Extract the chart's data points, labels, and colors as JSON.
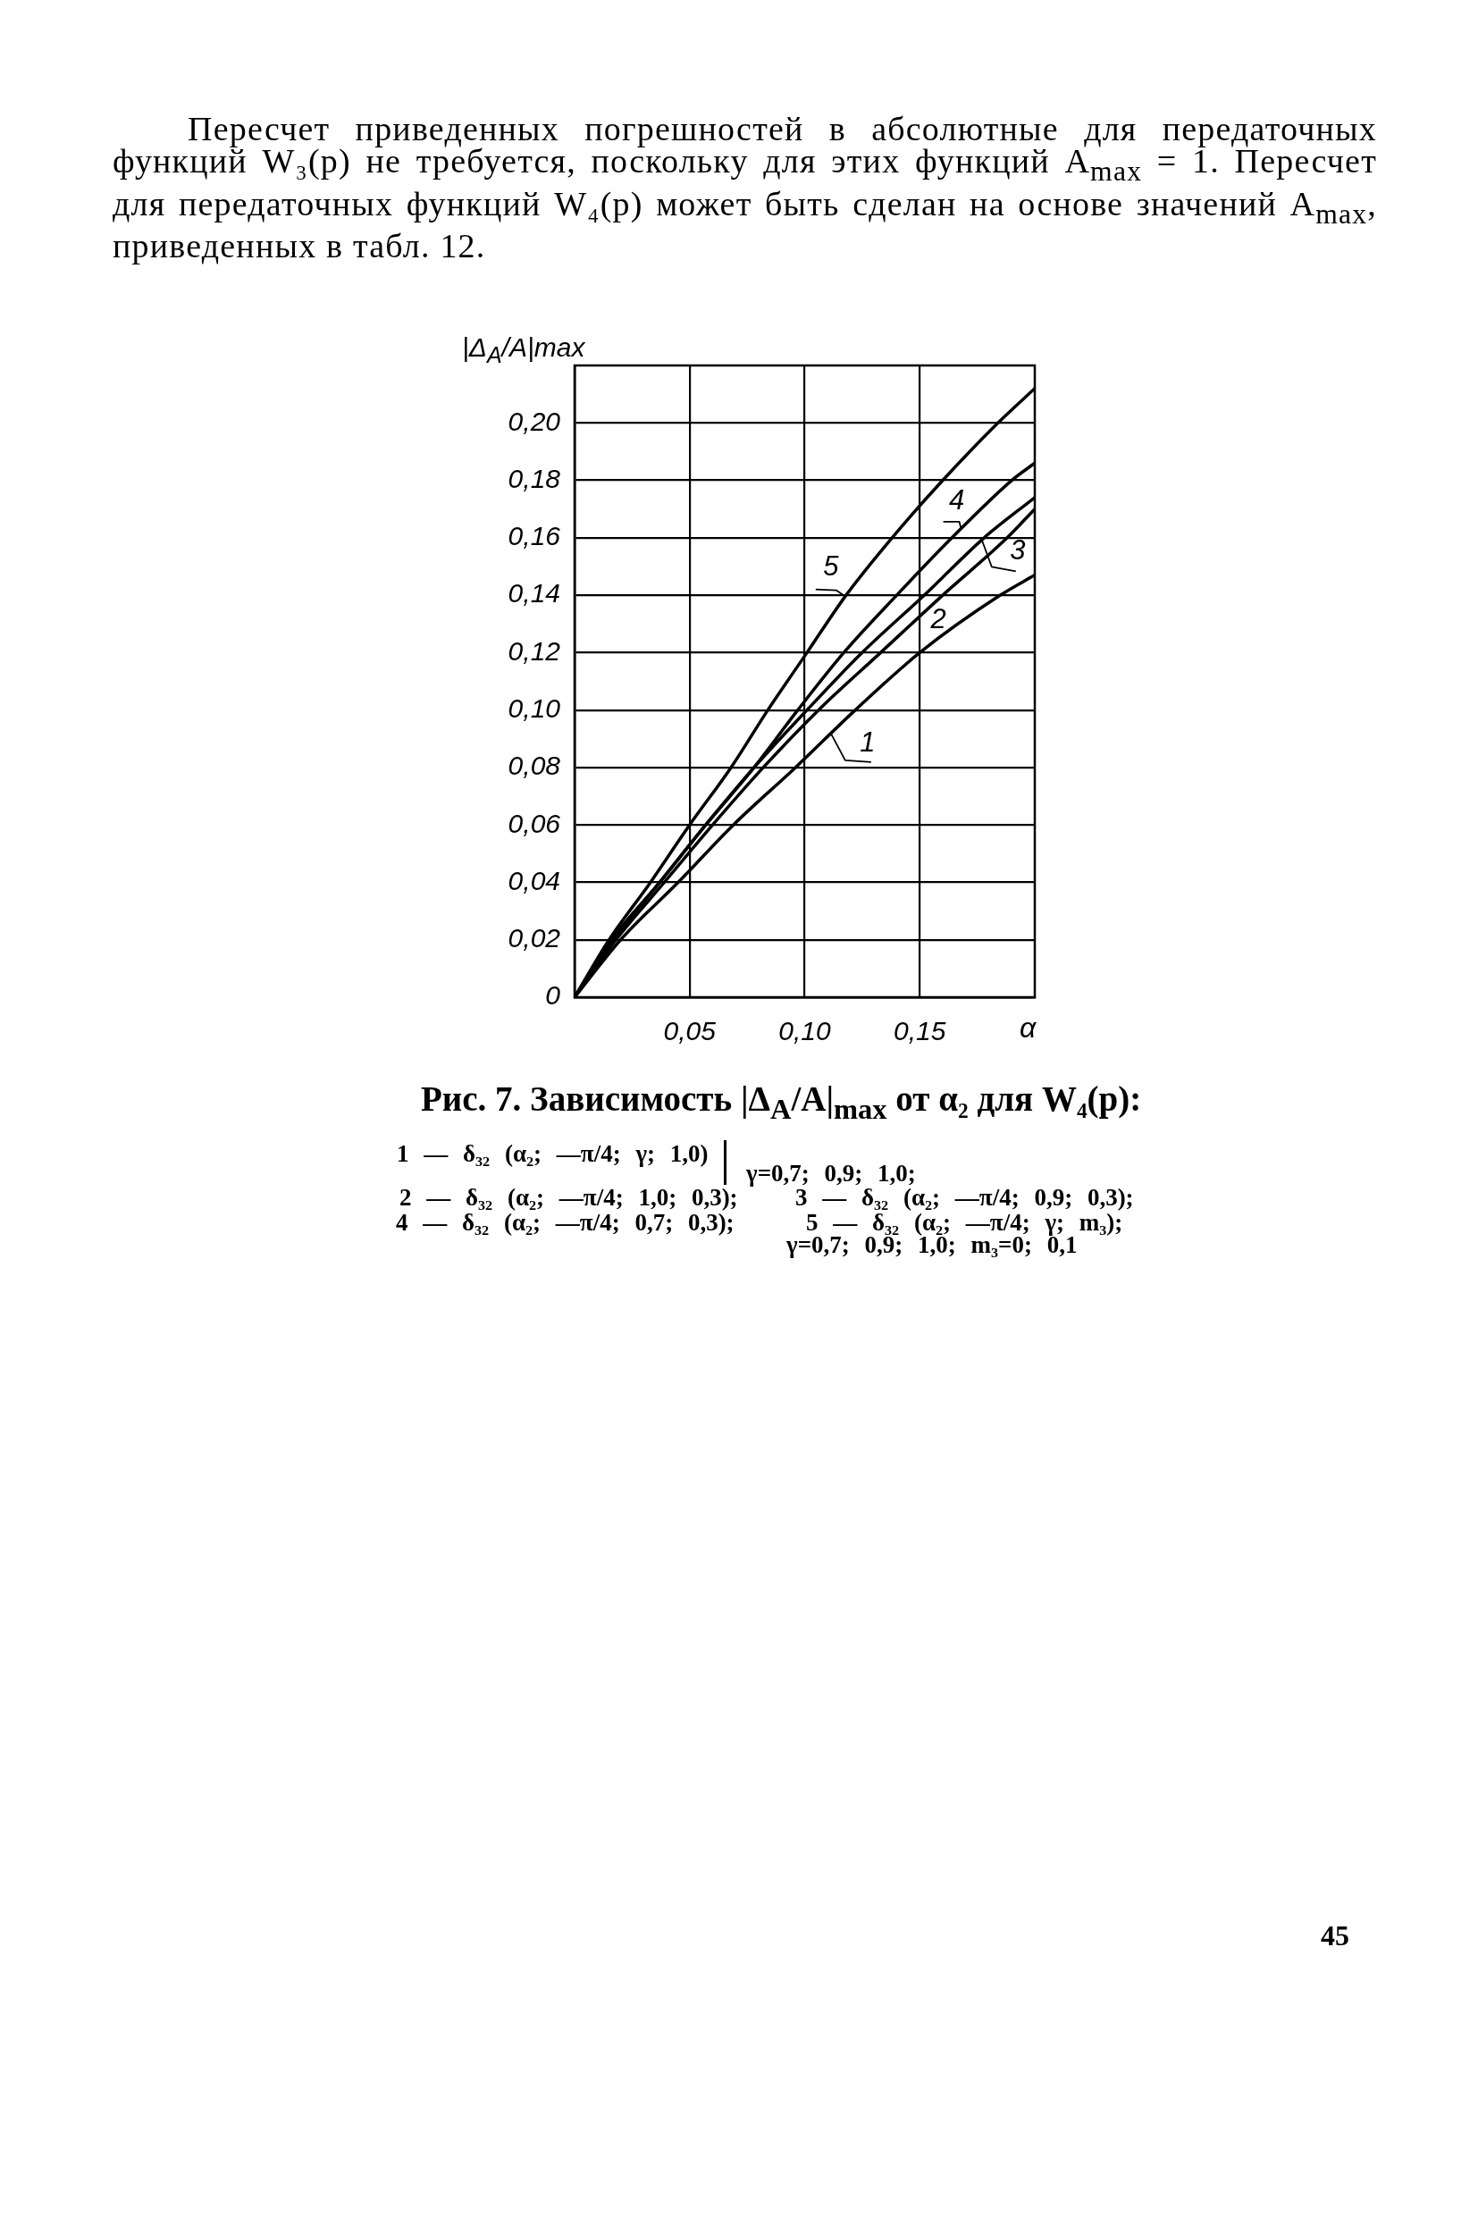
{
  "chart_data": {
    "type": "line",
    "title": "Рис. 7. Зависимость |Δ$_{A}$/A|$_{max}$ от α₂ для W₄(p):",
    "xlabel": "α",
    "ylabel": "|Δ$_{A}$/A|max",
    "xlim": [
      0,
      0.2
    ],
    "ylim": [
      0,
      0.22
    ],
    "xticks": [
      {
        "value": 0.05,
        "label": "0,05"
      },
      {
        "value": 0.1,
        "label": "0,10"
      },
      {
        "value": 0.15,
        "label": "0,15"
      }
    ],
    "yticks": [
      0,
      {
        "value": 0.02,
        "label": "0,02"
      },
      {
        "value": 0.04,
        "label": "0,04"
      },
      {
        "value": 0.06,
        "label": "0,06"
      },
      {
        "value": 0.08,
        "label": "0,08"
      },
      {
        "value": 0.1,
        "label": "0,10"
      },
      {
        "value": 0.12,
        "label": "0,12"
      },
      {
        "value": 0.14,
        "label": "0,14"
      },
      {
        "value": 0.16,
        "label": "0,16"
      },
      {
        "value": 0.18,
        "label": "0,18"
      },
      {
        "value": 0.2,
        "label": "0,20"
      }
    ],
    "grid": true,
    "series": [
      {
        "name": "1",
        "color": "#000000",
        "x": [
          0,
          0.02,
          0.045,
          0.069,
          0.096,
          0.122,
          0.15,
          0.185,
          0.2
        ],
        "values": [
          0,
          0.02,
          0.04,
          0.06,
          0.08,
          0.1,
          0.12,
          0.14,
          0.147
        ]
      },
      {
        "name": "2",
        "color": "#000000",
        "x": [
          0,
          0.018,
          0.039,
          0.06,
          0.082,
          0.106,
          0.133,
          0.16,
          0.188,
          0.2
        ],
        "values": [
          0,
          0.02,
          0.04,
          0.06,
          0.08,
          0.1,
          0.12,
          0.14,
          0.16,
          0.17
        ]
      },
      {
        "name": "3",
        "color": "#000000",
        "x": [
          0,
          0.017,
          0.037,
          0.057,
          0.078,
          0.101,
          0.125,
          0.152,
          0.178,
          0.2
        ],
        "values": [
          0,
          0.02,
          0.04,
          0.06,
          0.08,
          0.1,
          0.12,
          0.14,
          0.16,
          0.174
        ]
      },
      {
        "name": "4",
        "color": "#000000",
        "x": [
          0,
          0.016,
          0.037,
          0.057,
          0.078,
          0.097,
          0.117,
          0.14,
          0.164,
          0.19,
          0.2
        ],
        "values": [
          0,
          0.02,
          0.04,
          0.06,
          0.08,
          0.1,
          0.12,
          0.14,
          0.16,
          0.18,
          0.186
        ]
      },
      {
        "name": "5",
        "color": "#000000",
        "x": [
          0,
          0.015,
          0.033,
          0.05,
          0.068,
          0.084,
          0.101,
          0.118,
          0.138,
          0.16,
          0.184,
          0.2
        ],
        "values": [
          0,
          0.02,
          0.04,
          0.06,
          0.08,
          0.1,
          0.12,
          0.14,
          0.16,
          0.18,
          0.2,
          0.212
        ]
      }
    ],
    "annotations": [
      "Пересчет приведенных погрешностей в абсолютные для передаточных функций W₃(p) не требуется, поскольку для этих функций A$_{max}$ = 1. Пересчет для передаточных функций W₄(p) может быть сделан на основе значений A$_{max}$, приведенных в табл. 12.",
      "1 — δ₃₂ (α₂; —π/4; γ; 1,0)",
      "γ=0,7; 0,9; 1,0;",
      "2 — δ₃₂ (α₂; —π/4; 1,0; 0,3);",
      "3 — δ₃₂ (α₂; —π/4; 0,9; 0,3);",
      "4 — δ₃₂ (α₂; —π/4; 0,7; 0,3);",
      "5 — δ₃₂ (α₂; —π/4; γ; m₃);",
      "γ=0,7; 0,9; 1,0; m₃=0; 0,1",
      "45"
    ]
  }
}
